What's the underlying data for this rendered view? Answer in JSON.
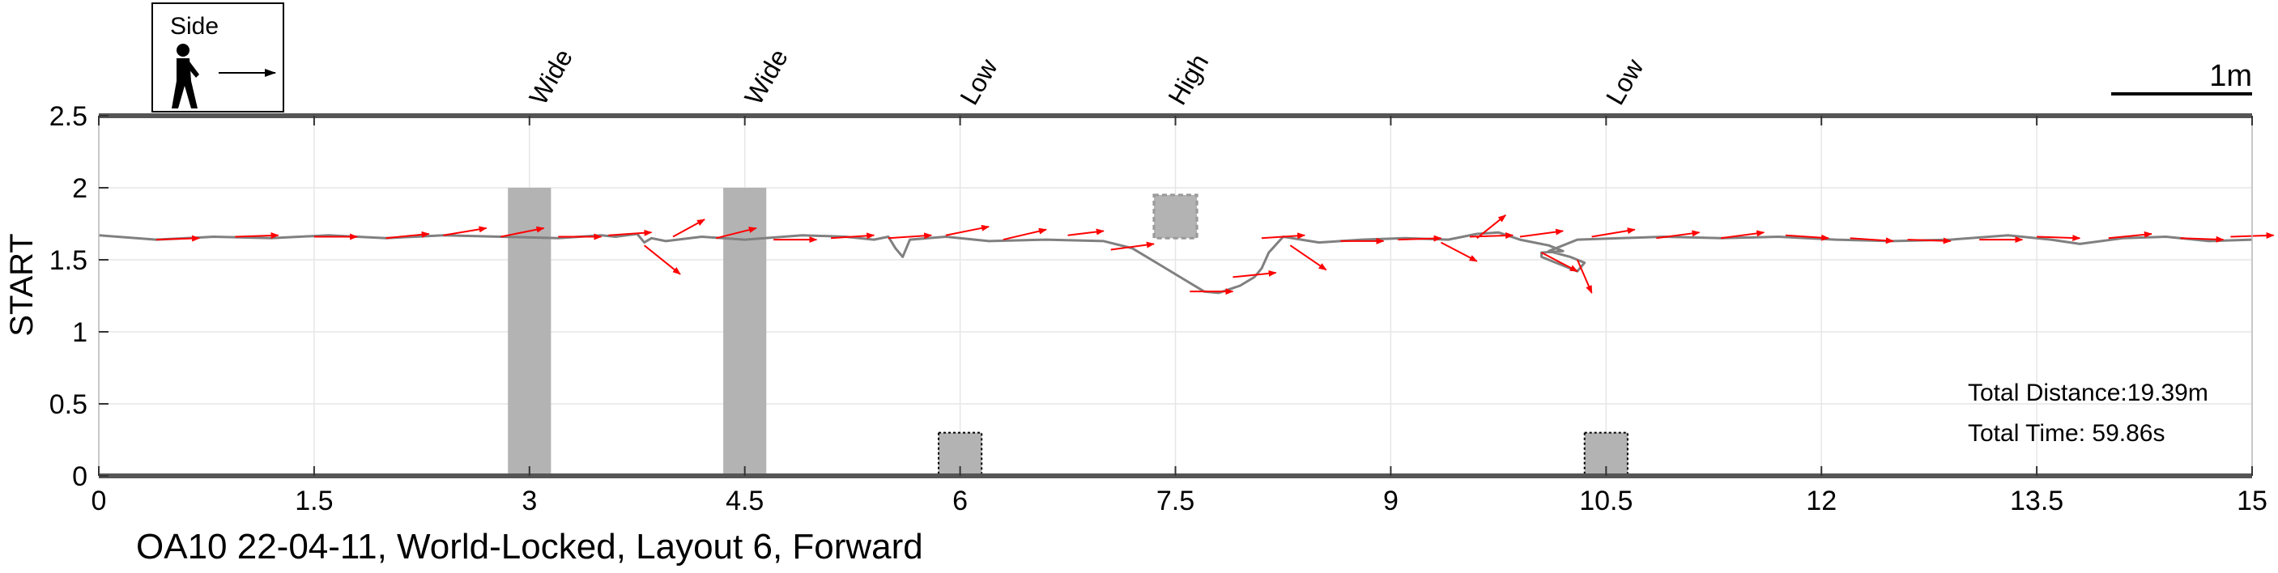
{
  "chart_data": {
    "type": "line",
    "xlim": [
      0,
      15
    ],
    "ylim": [
      0,
      2.5
    ],
    "x_ticks": [
      0,
      1.5,
      3,
      4.5,
      6,
      7.5,
      9,
      10.5,
      12,
      13.5,
      15
    ],
    "x_tick_labels": [
      "0",
      "1.5",
      "3",
      "4.5",
      "6",
      "7.5",
      "9",
      "10.5",
      "12",
      "13.5",
      "15"
    ],
    "y_ticks": [
      0,
      0.5,
      1,
      1.5,
      2,
      2.5
    ],
    "y_tick_labels": [
      "0",
      "0.5",
      "1",
      "1.5",
      "2",
      "2.5"
    ],
    "ylabel": "START",
    "grid": true,
    "caption": "OA10 22-04-11, World-Locked, Layout 6, Forward",
    "legend": {
      "label": "Side",
      "icon": "walking-person-icon",
      "placement": "top-left"
    },
    "scale_bar_label": "1m",
    "stats": {
      "total_distance": "Total Distance:19.39m",
      "total_time": "Total Time: 59.86s"
    },
    "trajectory_color": "#808080",
    "arrow_color": "#ff0000",
    "obstacle_color": "#b3b3b3",
    "obstacles": [
      {
        "label": "Wide",
        "type": "wide",
        "x0": 2.85,
        "x1": 3.15,
        "y0": 0,
        "y1": 2.0,
        "label_x": 3.1
      },
      {
        "label": "Wide",
        "type": "wide",
        "x0": 4.35,
        "x1": 4.65,
        "y0": 0,
        "y1": 2.0,
        "label_x": 4.6
      },
      {
        "label": "Low",
        "type": "low",
        "x0": 5.85,
        "x1": 6.15,
        "y0": 0,
        "y1": 0.3,
        "label_x": 6.1
      },
      {
        "label": "High",
        "type": "high",
        "x0": 7.35,
        "x1": 7.65,
        "y0": 1.65,
        "y1": 1.95,
        "label_x": 7.55
      },
      {
        "label": "Low",
        "type": "low",
        "x0": 10.35,
        "x1": 10.65,
        "y0": 0,
        "y1": 0.3,
        "label_x": 10.6
      }
    ],
    "trajectory": {
      "x": [
        0,
        0.4,
        0.8,
        1.2,
        1.6,
        2.0,
        2.4,
        2.8,
        3.2,
        3.5,
        3.6,
        3.75,
        3.8,
        3.85,
        3.95,
        4.2,
        4.5,
        4.9,
        5.2,
        5.4,
        5.5,
        5.55,
        5.6,
        5.65,
        5.9,
        6.2,
        6.6,
        7.0,
        7.2,
        7.4,
        7.6,
        7.7,
        7.8,
        7.95,
        8.05,
        8.1,
        8.15,
        8.25,
        8.5,
        8.8,
        9.1,
        9.4,
        9.6,
        9.75,
        9.9,
        10.1,
        10.2,
        10.05,
        10.05,
        10.2,
        10.3,
        10.35,
        10.25,
        10.1,
        10.3,
        10.6,
        10.9,
        11.3,
        11.7,
        12.1,
        12.5,
        12.9,
        13.3,
        13.6,
        13.8,
        14.1,
        14.4,
        14.7,
        15.0
      ],
      "y": [
        1.67,
        1.64,
        1.66,
        1.65,
        1.67,
        1.65,
        1.67,
        1.66,
        1.65,
        1.67,
        1.66,
        1.68,
        1.62,
        1.65,
        1.63,
        1.66,
        1.64,
        1.67,
        1.66,
        1.64,
        1.66,
        1.58,
        1.52,
        1.64,
        1.66,
        1.63,
        1.64,
        1.63,
        1.58,
        1.46,
        1.34,
        1.28,
        1.27,
        1.32,
        1.38,
        1.44,
        1.55,
        1.66,
        1.62,
        1.64,
        1.65,
        1.64,
        1.68,
        1.69,
        1.64,
        1.6,
        1.56,
        1.55,
        1.52,
        1.46,
        1.42,
        1.48,
        1.52,
        1.56,
        1.64,
        1.65,
        1.66,
        1.65,
        1.66,
        1.64,
        1.63,
        1.64,
        1.67,
        1.64,
        1.61,
        1.65,
        1.66,
        1.63,
        1.64
      ]
    },
    "heading_arrows": [
      {
        "x": 0.4,
        "y": 1.64,
        "dx": 0.3,
        "dy": 0.01
      },
      {
        "x": 0.95,
        "y": 1.66,
        "dx": 0.3,
        "dy": 0.01
      },
      {
        "x": 1.5,
        "y": 1.66,
        "dx": 0.3,
        "dy": 0.0
      },
      {
        "x": 2.0,
        "y": 1.65,
        "dx": 0.3,
        "dy": 0.03
      },
      {
        "x": 2.4,
        "y": 1.67,
        "dx": 0.3,
        "dy": 0.05
      },
      {
        "x": 2.8,
        "y": 1.66,
        "dx": 0.3,
        "dy": 0.06
      },
      {
        "x": 3.2,
        "y": 1.66,
        "dx": 0.3,
        "dy": 0.0
      },
      {
        "x": 3.55,
        "y": 1.67,
        "dx": 0.3,
        "dy": 0.02
      },
      {
        "x": 3.8,
        "y": 1.6,
        "dx": 0.25,
        "dy": -0.2
      },
      {
        "x": 4.0,
        "y": 1.66,
        "dx": 0.22,
        "dy": 0.12
      },
      {
        "x": 4.3,
        "y": 1.65,
        "dx": 0.28,
        "dy": 0.07
      },
      {
        "x": 4.7,
        "y": 1.64,
        "dx": 0.3,
        "dy": 0.0
      },
      {
        "x": 5.1,
        "y": 1.65,
        "dx": 0.3,
        "dy": 0.02
      },
      {
        "x": 5.5,
        "y": 1.65,
        "dx": 0.3,
        "dy": 0.02
      },
      {
        "x": 5.9,
        "y": 1.67,
        "dx": 0.3,
        "dy": 0.06
      },
      {
        "x": 6.3,
        "y": 1.64,
        "dx": 0.3,
        "dy": 0.07
      },
      {
        "x": 6.75,
        "y": 1.67,
        "dx": 0.25,
        "dy": 0.03
      },
      {
        "x": 7.05,
        "y": 1.57,
        "dx": 0.3,
        "dy": 0.04
      },
      {
        "x": 7.6,
        "y": 1.28,
        "dx": 0.3,
        "dy": 0.0
      },
      {
        "x": 7.9,
        "y": 1.38,
        "dx": 0.3,
        "dy": 0.03
      },
      {
        "x": 8.1,
        "y": 1.65,
        "dx": 0.3,
        "dy": 0.02
      },
      {
        "x": 8.3,
        "y": 1.6,
        "dx": 0.25,
        "dy": -0.17
      },
      {
        "x": 8.65,
        "y": 1.63,
        "dx": 0.3,
        "dy": 0.0
      },
      {
        "x": 9.05,
        "y": 1.64,
        "dx": 0.3,
        "dy": 0.01
      },
      {
        "x": 9.35,
        "y": 1.62,
        "dx": 0.25,
        "dy": -0.13
      },
      {
        "x": 9.55,
        "y": 1.66,
        "dx": 0.3,
        "dy": 0.01
      },
      {
        "x": 9.6,
        "y": 1.65,
        "dx": 0.2,
        "dy": 0.16
      },
      {
        "x": 9.9,
        "y": 1.66,
        "dx": 0.3,
        "dy": 0.04
      },
      {
        "x": 10.05,
        "y": 1.55,
        "dx": 0.25,
        "dy": -0.13
      },
      {
        "x": 10.3,
        "y": 1.5,
        "dx": 0.1,
        "dy": -0.23
      },
      {
        "x": 10.4,
        "y": 1.66,
        "dx": 0.3,
        "dy": 0.05
      },
      {
        "x": 10.85,
        "y": 1.65,
        "dx": 0.3,
        "dy": 0.04
      },
      {
        "x": 11.3,
        "y": 1.65,
        "dx": 0.3,
        "dy": 0.04
      },
      {
        "x": 11.75,
        "y": 1.67,
        "dx": 0.3,
        "dy": -0.02
      },
      {
        "x": 12.2,
        "y": 1.65,
        "dx": 0.3,
        "dy": -0.02
      },
      {
        "x": 12.6,
        "y": 1.64,
        "dx": 0.3,
        "dy": -0.01
      },
      {
        "x": 13.1,
        "y": 1.64,
        "dx": 0.3,
        "dy": 0.0
      },
      {
        "x": 13.5,
        "y": 1.66,
        "dx": 0.3,
        "dy": -0.01
      },
      {
        "x": 14.0,
        "y": 1.65,
        "dx": 0.3,
        "dy": 0.03
      },
      {
        "x": 14.5,
        "y": 1.65,
        "dx": 0.3,
        "dy": -0.01
      },
      {
        "x": 14.85,
        "y": 1.66,
        "dx": 0.3,
        "dy": 0.01
      }
    ]
  }
}
